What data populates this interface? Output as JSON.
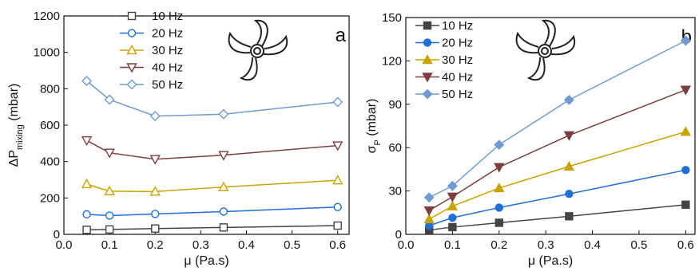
{
  "chart_data": [
    {
      "type": "line",
      "annotation": "a",
      "ylabel": [
        "ΔP",
        "mixing",
        " (mbar)"
      ],
      "xlabel": "μ (Pa.s)",
      "x": [
        0.05,
        0.1,
        0.2,
        0.35,
        0.6
      ],
      "xlim": [
        0,
        0.625
      ],
      "xticks": [
        {
          "value": 0,
          "label": "0.0"
        },
        0.1,
        0.2,
        0.3,
        0.4,
        0.5,
        0.6
      ],
      "ylim": [
        0,
        1200
      ],
      "yticks": [
        0,
        200,
        400,
        600,
        800,
        1000,
        1200
      ],
      "marker_fill": false,
      "series": [
        {
          "name": "10 Hz",
          "color": "#444444",
          "marker": "square",
          "values": [
            25,
            27,
            32,
            38,
            48
          ]
        },
        {
          "name": "20 Hz",
          "color": "#1f6fd6",
          "marker": "circle",
          "values": [
            110,
            103,
            112,
            125,
            150
          ]
        },
        {
          "name": "30 Hz",
          "color": "#c9a400",
          "marker": "triangle-up",
          "values": [
            276,
            237,
            235,
            260,
            297
          ]
        },
        {
          "name": "40 Hz",
          "color": "#7b3f3f",
          "marker": "triangle-down",
          "values": [
            516,
            448,
            413,
            435,
            488
          ]
        },
        {
          "name": "50 Hz",
          "color": "#6f9bd1",
          "marker": "diamond",
          "values": [
            843,
            740,
            650,
            660,
            727
          ]
        }
      ]
    },
    {
      "type": "line",
      "annotation": "b",
      "ylabel": [
        "σ",
        "P",
        " (mbar)"
      ],
      "xlabel": "μ (Pa.s)",
      "x": [
        0.05,
        0.1,
        0.2,
        0.35,
        0.6
      ],
      "xlim": [
        0,
        0.62
      ],
      "xticks": [
        {
          "value": 0,
          "label": "0.0"
        },
        0.1,
        0.2,
        0.3,
        0.4,
        0.5,
        0.6
      ],
      "ylim": [
        0,
        150
      ],
      "yticks": [
        0,
        30,
        60,
        90,
        120,
        150
      ],
      "marker_fill": true,
      "series": [
        {
          "name": "10 Hz",
          "color": "#444444",
          "marker": "square",
          "values": [
            3,
            5,
            8,
            12.5,
            20.5
          ]
        },
        {
          "name": "20 Hz",
          "color": "#1f6fd6",
          "marker": "circle",
          "values": [
            6,
            11.5,
            18.5,
            28,
            44.5
          ]
        },
        {
          "name": "30 Hz",
          "color": "#c9a400",
          "marker": "triangle-up",
          "values": [
            10.5,
            19.5,
            32,
            47,
            71
          ]
        },
        {
          "name": "40 Hz",
          "color": "#7b3f3f",
          "marker": "triangle-down",
          "values": [
            16.5,
            26,
            46.5,
            68.5,
            100
          ]
        },
        {
          "name": "50 Hz",
          "color": "#6f9bd1",
          "marker": "diamond",
          "values": [
            25.5,
            33.5,
            62,
            93,
            134
          ]
        }
      ]
    }
  ]
}
